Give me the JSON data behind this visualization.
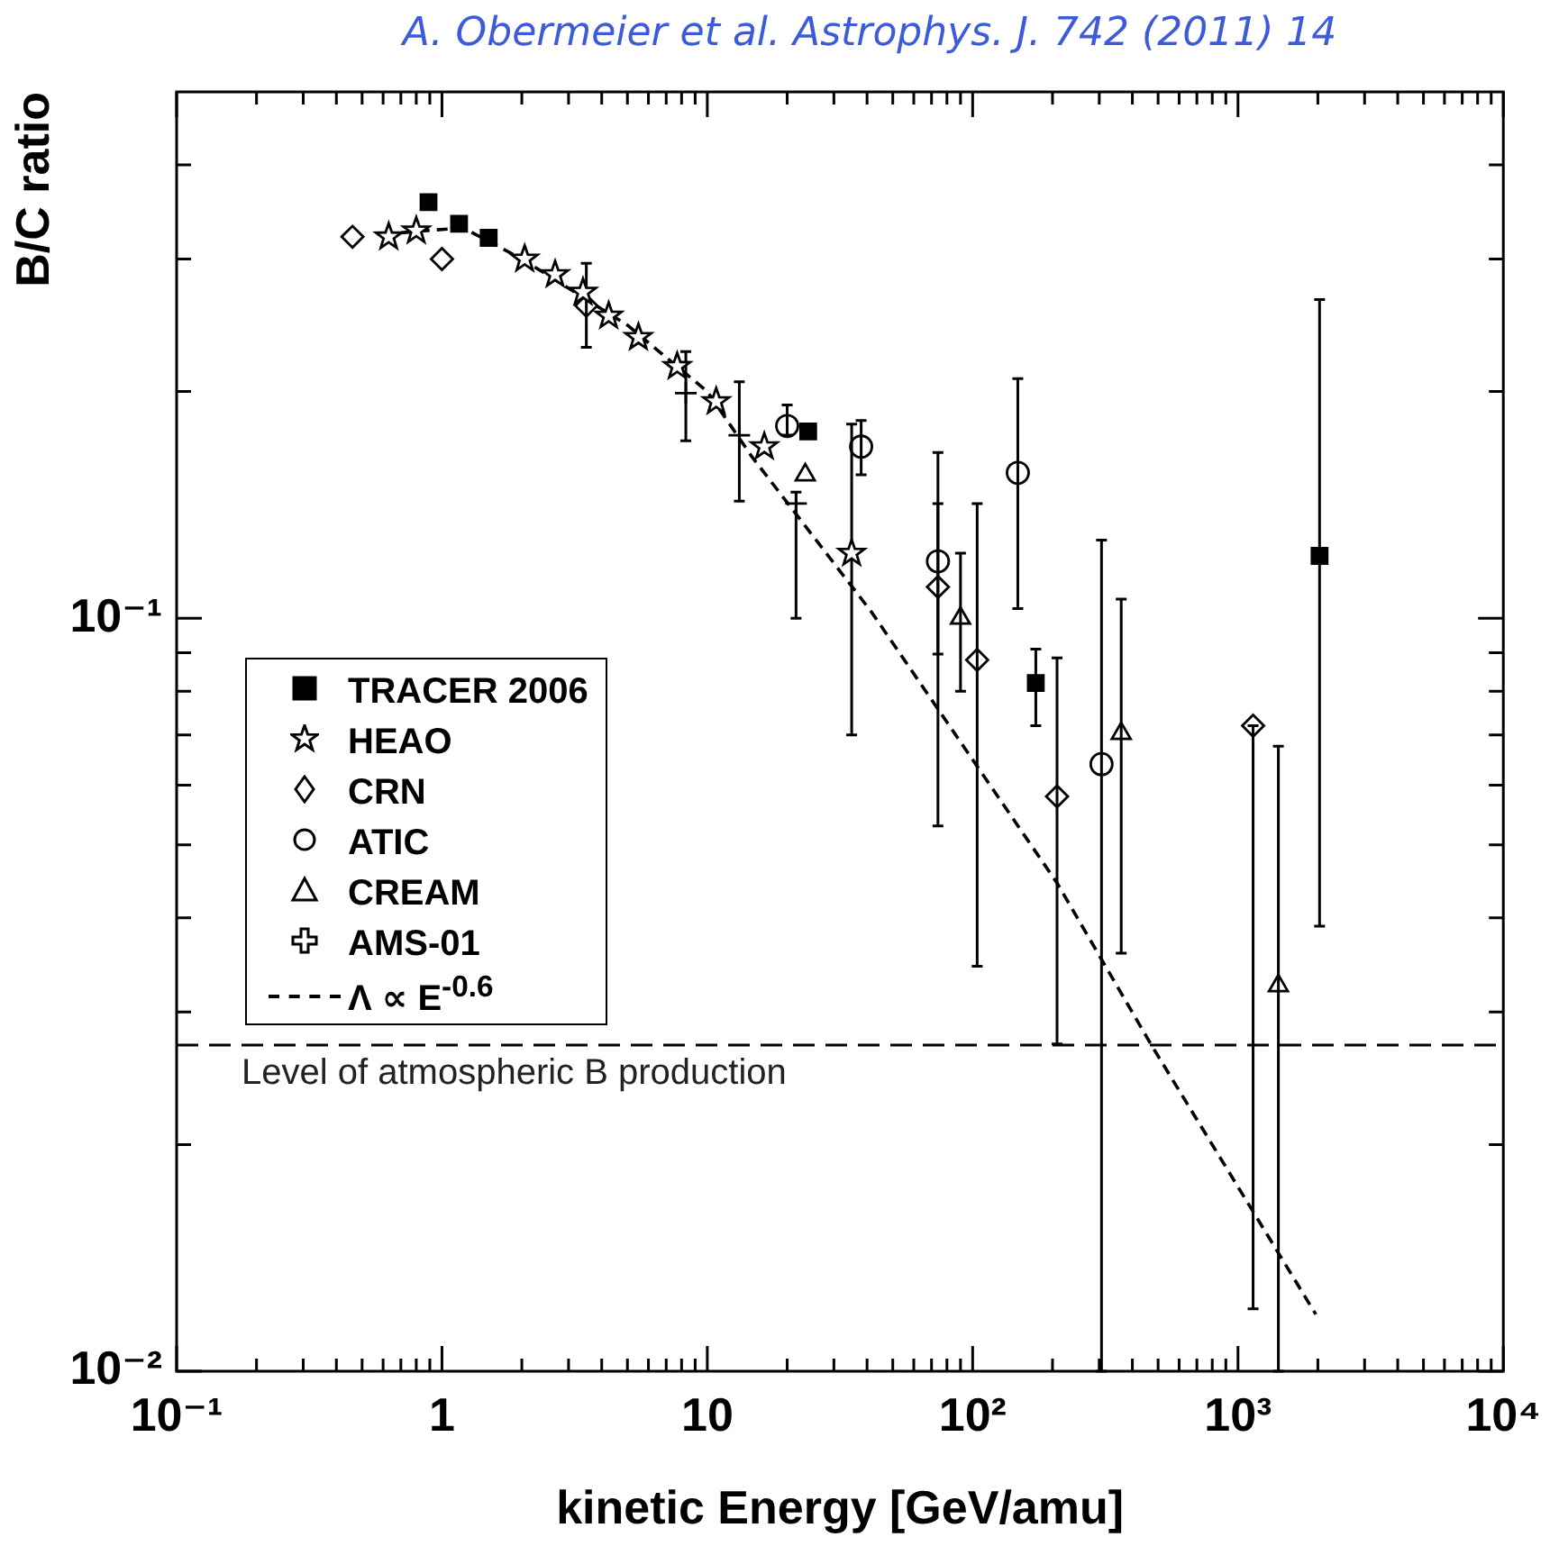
{
  "chart_data": {
    "type": "scatter",
    "title": "A. Obermeier et al. Astrophys. J. 742 (2011) 14",
    "xlabel": "kinetic Energy [GeV/amu]",
    "ylabel": "B/C ratio",
    "log": "xy",
    "grid": false,
    "legend": "left",
    "xlim": [
      0.1,
      10000
    ],
    "ylim": [
      0.01,
      0.5
    ],
    "xticks": [
      {
        "value": 0.1,
        "label": "10⁻¹"
      },
      {
        "value": 0.2,
        "label": null
      },
      {
        "value": 0.3,
        "label": null
      },
      {
        "value": 0.4,
        "label": null
      },
      {
        "value": 0.5,
        "label": null
      },
      {
        "value": 0.6,
        "label": null
      },
      {
        "value": 0.7,
        "label": null
      },
      {
        "value": 0.8,
        "label": null
      },
      {
        "value": 0.9,
        "label": null
      },
      1,
      {
        "value": 2,
        "label": null
      },
      {
        "value": 3,
        "label": null
      },
      {
        "value": 4,
        "label": null
      },
      {
        "value": 5,
        "label": null
      },
      {
        "value": 6,
        "label": null
      },
      {
        "value": 7,
        "label": null
      },
      {
        "value": 8,
        "label": null
      },
      {
        "value": 9,
        "label": null
      },
      10,
      {
        "value": 20,
        "label": null
      },
      {
        "value": 30,
        "label": null
      },
      {
        "value": 40,
        "label": null
      },
      {
        "value": 50,
        "label": null
      },
      {
        "value": 60,
        "label": null
      },
      {
        "value": 70,
        "label": null
      },
      {
        "value": 80,
        "label": null
      },
      {
        "value": 90,
        "label": null
      },
      {
        "value": 100,
        "label": "10²"
      },
      {
        "value": 200,
        "label": null
      },
      {
        "value": 300,
        "label": null
      },
      {
        "value": 400,
        "label": null
      },
      {
        "value": 500,
        "label": null
      },
      {
        "value": 600,
        "label": null
      },
      {
        "value": 700,
        "label": null
      },
      {
        "value": 800,
        "label": null
      },
      {
        "value": 900,
        "label": null
      },
      {
        "value": 1000,
        "label": "10³"
      },
      {
        "value": 2000,
        "label": null
      },
      {
        "value": 3000,
        "label": null
      },
      {
        "value": 4000,
        "label": null
      },
      {
        "value": 5000,
        "label": null
      },
      {
        "value": 6000,
        "label": null
      },
      {
        "value": 7000,
        "label": null
      },
      {
        "value": 8000,
        "label": null
      },
      {
        "value": 9000,
        "label": null
      },
      {
        "value": 10000,
        "label": "10⁴"
      }
    ],
    "yticks": [
      {
        "value": 0.01,
        "label": "10⁻²"
      },
      {
        "value": 0.02,
        "label": null
      },
      {
        "value": 0.03,
        "label": null
      },
      {
        "value": 0.04,
        "label": null
      },
      {
        "value": 0.05,
        "label": null
      },
      {
        "value": 0.06,
        "label": null
      },
      {
        "value": 0.07,
        "label": null
      },
      {
        "value": 0.08,
        "label": null
      },
      {
        "value": 0.09,
        "label": null
      },
      {
        "value": 0.1,
        "label": "10⁻¹"
      },
      {
        "value": 0.2,
        "label": null
      },
      {
        "value": 0.3,
        "label": null
      },
      {
        "value": 0.4,
        "label": null
      }
    ],
    "ref_lines": [
      {
        "axis": "y",
        "value": 0.0271,
        "label": "Level of atmospheric B production",
        "line_style": "dashed",
        "color": "#000000"
      }
    ],
    "series": [
      {
        "name": "TRACER 2006",
        "color": "#000000",
        "marker": "square",
        "x": [
          0.89,
          1.16,
          1.5,
          24,
          173,
          2030
        ],
        "values": [
          0.357,
          0.334,
          0.32,
          0.177,
          0.082,
          0.121
        ],
        "errors": [
          null,
          null,
          null,
          null,
          [
            0.072,
            0.091
          ],
          [
            0.039,
            0.265
          ]
        ]
      },
      {
        "name": "HEAO",
        "color": "#000000",
        "marker": "star",
        "x": [
          0.63,
          0.8,
          2.05,
          2.67,
          3.4,
          4.25,
          5.5,
          7.7,
          10.8,
          16.4,
          35
        ],
        "values": [
          0.321,
          0.327,
          0.3,
          0.286,
          0.271,
          0.252,
          0.236,
          0.216,
          0.194,
          0.169,
          0.122
        ],
        "errors": [
          null,
          null,
          null,
          null,
          null,
          null,
          null,
          null,
          null,
          null,
          [
            0.07,
            0.181
          ]
        ]
      },
      {
        "name": "CRN",
        "color": "#000000",
        "marker": "diamond",
        "x": [
          0.46,
          1.0,
          3.5,
          74,
          104,
          208,
          1140
        ],
        "values": [
          0.321,
          0.3,
          0.26,
          0.11,
          0.088,
          0.058,
          0.072
        ],
        "errors": [
          null,
          null,
          [
            0.229,
            0.296
          ],
          [
            0.053,
            0.166
          ],
          [
            0.0345,
            0.142
          ],
          [
            0.0272,
            0.0886
          ],
          [
            0.0121,
            0.072
          ]
        ]
      },
      {
        "name": "ATIC",
        "color": "#000000",
        "marker": "circle",
        "x": [
          20,
          38,
          74,
          148,
          306
        ],
        "values": [
          0.18,
          0.169,
          0.119,
          0.156,
          0.064
        ],
        "errors": [
          [
            0.175,
            0.192
          ],
          [
            0.155,
            0.183
          ],
          [
            0.0896,
            0.142
          ],
          [
            0.103,
            0.208
          ],
          [
            0.01,
            0.127
          ]
        ]
      },
      {
        "name": "CREAM",
        "color": "#000000",
        "marker": "triangle",
        "x": [
          23.4,
          90,
          363,
          1420
        ],
        "values": [
          0.155,
          0.1,
          0.0703,
          0.0325
        ],
        "errors": [
          null,
          [
            0.08,
            0.122
          ],
          [
            0.0359,
            0.106
          ],
          [
            0.01,
            0.0676
          ]
        ]
      },
      {
        "name": "AMS-01",
        "color": "#000000",
        "marker": "cross",
        "x": [
          8.3,
          13.2,
          21.6
        ],
        "values": [
          0.199,
          0.175,
          0.142
        ],
        "errors": [
          [
            0.172,
            0.226
          ],
          [
            0.143,
            0.206
          ],
          [
            0.1,
            0.147
          ]
        ]
      },
      {
        "name": "Λ ∝ E$^{-0.6}$",
        "type": "line",
        "color": "#000000",
        "marker": "none",
        "line_style": "dashed",
        "x": [
          0.7,
          1.2,
          2,
          5,
          10,
          14.7,
          41.5,
          208,
          472,
          1965
        ],
        "values": [
          0.325,
          0.33,
          0.3,
          0.245,
          0.2,
          0.164,
          0.102,
          0.0445,
          0.0271,
          0.0119
        ]
      }
    ]
  }
}
